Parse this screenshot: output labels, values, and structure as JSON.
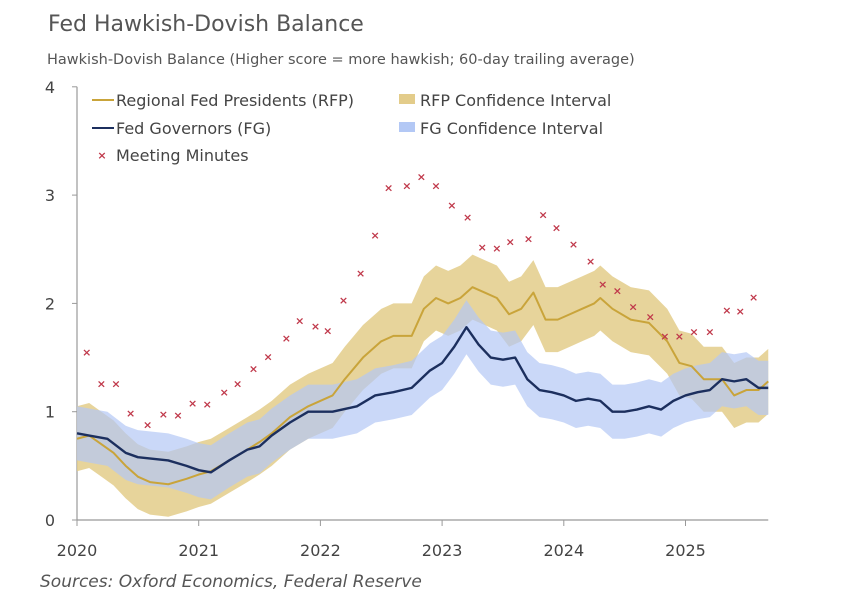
{
  "chart_data": {
    "type": "line",
    "title": "Fed Hawkish-Dovish Balance",
    "subtitle": "Hawkish-Dovish Balance (Higher score = more hawkish; 60-day trailing average)",
    "source": "Sources: Oxford Economics, Federal Reserve",
    "xlim": [
      2020,
      2025.68
    ],
    "ylim": [
      0,
      4
    ],
    "x_ticks": [
      "2020",
      "2021",
      "2022",
      "2023",
      "2024",
      "2025"
    ],
    "y_ticks": [
      "0",
      "1",
      "2",
      "3",
      "4"
    ],
    "grid": false,
    "legend_placement": "top-left",
    "legend": [
      "Regional Fed Presidents (RFP)",
      "RFP Confidence Interval",
      "Fed Governors (FG)",
      "FG Confidence Interval",
      "Meeting Minutes"
    ],
    "colors": {
      "rfp": "#c9a43a",
      "rfp_ci": "#e3cc8a",
      "fg": "#1c2f5e",
      "fg_ci": "#b3c8f5",
      "minutes": "#c0394b"
    },
    "series": [
      {
        "name": "Regional Fed Presidents (RFP)",
        "ci_name": "RFP Confidence Interval",
        "ci_half_width": 0.3,
        "x": [
          2020,
          2020.1,
          2020.2,
          2020.3,
          2020.4,
          2020.5,
          2020.6,
          2020.75,
          2020.9,
          2021.0,
          2021.1,
          2021.25,
          2021.4,
          2021.5,
          2021.6,
          2021.75,
          2021.9,
          2022.1,
          2022.2,
          2022.35,
          2022.5,
          2022.6,
          2022.75,
          2022.85,
          2022.95,
          2023.05,
          2023.15,
          2023.25,
          2023.35,
          2023.45,
          2023.55,
          2023.65,
          2023.75,
          2023.85,
          2023.95,
          2024.05,
          2024.15,
          2024.25,
          2024.3,
          2024.4,
          2024.55,
          2024.7,
          2024.85,
          2024.95,
          2025.05,
          2025.15,
          2025.3,
          2025.4,
          2025.5,
          2025.6,
          2025.68
        ],
        "y": [
          0.75,
          0.78,
          0.7,
          0.62,
          0.5,
          0.4,
          0.35,
          0.33,
          0.38,
          0.42,
          0.45,
          0.55,
          0.65,
          0.72,
          0.8,
          0.95,
          1.05,
          1.15,
          1.3,
          1.5,
          1.65,
          1.7,
          1.7,
          1.95,
          2.05,
          2.0,
          2.05,
          2.15,
          2.1,
          2.05,
          1.9,
          1.95,
          2.1,
          1.85,
          1.85,
          1.9,
          1.95,
          2.0,
          2.05,
          1.95,
          1.85,
          1.82,
          1.65,
          1.45,
          1.42,
          1.3,
          1.3,
          1.15,
          1.2,
          1.2,
          1.28
        ]
      },
      {
        "name": "Fed Governors (FG)",
        "ci_name": "FG Confidence Interval",
        "ci_half_width": 0.25,
        "x": [
          2020,
          2020.1,
          2020.25,
          2020.4,
          2020.5,
          2020.75,
          2020.9,
          2021.0,
          2021.1,
          2021.25,
          2021.4,
          2021.5,
          2021.6,
          2021.75,
          2021.9,
          2022.1,
          2022.3,
          2022.45,
          2022.6,
          2022.75,
          2022.9,
          2023.0,
          2023.1,
          2023.2,
          2023.3,
          2023.4,
          2023.5,
          2023.6,
          2023.7,
          2023.8,
          2023.9,
          2024.0,
          2024.1,
          2024.2,
          2024.3,
          2024.4,
          2024.5,
          2024.6,
          2024.7,
          2024.8,
          2024.9,
          2025.0,
          2025.1,
          2025.2,
          2025.3,
          2025.4,
          2025.5,
          2025.6,
          2025.68
        ],
        "y": [
          0.8,
          0.78,
          0.75,
          0.62,
          0.58,
          0.55,
          0.5,
          0.46,
          0.44,
          0.55,
          0.65,
          0.68,
          0.78,
          0.9,
          1.0,
          1.0,
          1.05,
          1.15,
          1.18,
          1.22,
          1.38,
          1.45,
          1.6,
          1.78,
          1.62,
          1.5,
          1.48,
          1.5,
          1.3,
          1.2,
          1.18,
          1.15,
          1.1,
          1.12,
          1.1,
          1.0,
          1.0,
          1.02,
          1.05,
          1.02,
          1.1,
          1.15,
          1.18,
          1.2,
          1.3,
          1.28,
          1.3,
          1.22,
          1.22
        ]
      }
    ],
    "scatter": {
      "name": "Meeting Minutes",
      "x": [
        2020.08,
        2020.2,
        2020.32,
        2020.44,
        2020.58,
        2020.71,
        2020.83,
        2020.95,
        2021.07,
        2021.21,
        2021.32,
        2021.45,
        2021.57,
        2021.72,
        2021.83,
        2021.96,
        2022.06,
        2022.19,
        2022.33,
        2022.45,
        2022.56,
        2022.71,
        2022.83,
        2022.95,
        2023.08,
        2023.21,
        2023.33,
        2023.45,
        2023.56,
        2023.71,
        2023.83,
        2023.94,
        2024.08,
        2024.22,
        2024.32,
        2024.44,
        2024.57,
        2024.71,
        2024.83,
        2024.95,
        2025.07,
        2025.2,
        2025.34,
        2025.45,
        2025.56
      ],
      "y": [
        1.55,
        1.26,
        1.26,
        0.99,
        0.88,
        0.98,
        0.97,
        1.08,
        1.07,
        1.18,
        1.26,
        1.4,
        1.51,
        1.68,
        1.84,
        1.79,
        1.75,
        2.03,
        2.28,
        2.63,
        3.07,
        3.09,
        3.17,
        3.09,
        2.91,
        2.8,
        2.52,
        2.51,
        2.57,
        2.6,
        2.82,
        2.7,
        2.55,
        2.39,
        2.18,
        2.12,
        1.97,
        1.88,
        1.7,
        1.7,
        1.74,
        1.74,
        1.94,
        1.93,
        2.06
      ]
    }
  }
}
